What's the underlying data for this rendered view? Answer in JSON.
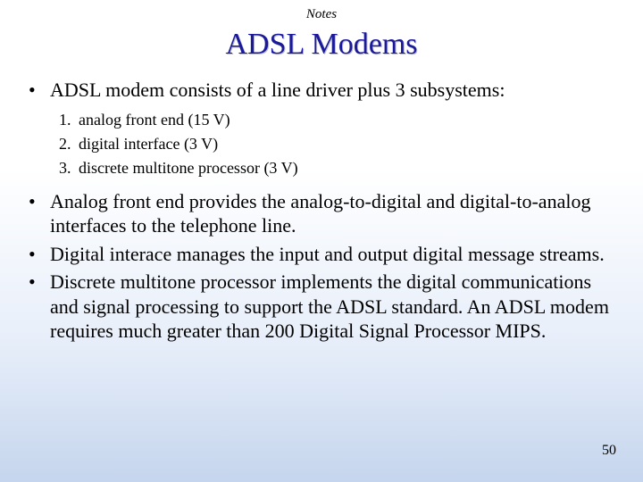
{
  "header_label": "Notes",
  "title": "ADSL Modems",
  "bullets": {
    "b1": "ADSL modem consists of a line driver plus 3 subsystems:",
    "sub1_num": "1.",
    "sub1": "analog front end (15 V)",
    "sub2_num": "2.",
    "sub2": "digital interface (3 V)",
    "sub3_num": "3.",
    "sub3": "discrete multitone processor (3 V)",
    "b2": "Analog front end provides the analog-to-digital and digital-to-analog interfaces to the telephone line.",
    "b3": "Digital interace manages the input and output digital message streams.",
    "b4": "Discrete multitone processor implements the digital communications and signal processing to support the ADSL standard. An ADSL modem requires much greater than 200 Digital Signal Processor MIPS."
  },
  "page_number": "50",
  "colors": {
    "title_color": "#1a1a9a",
    "bg_top": "#ffffff",
    "bg_bottom": "#c5d5ed"
  },
  "typography": {
    "title_fontsize": 34,
    "body_fontsize": 22,
    "sublist_fontsize": 18,
    "font_family": "Times New Roman"
  }
}
